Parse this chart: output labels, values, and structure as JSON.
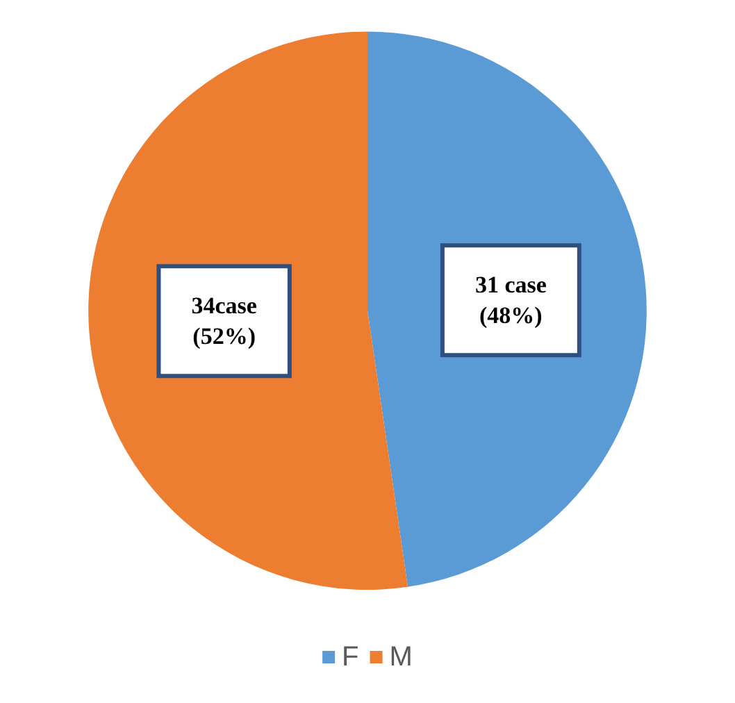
{
  "chart_data": {
    "type": "pie",
    "categories": [
      "F",
      "M"
    ],
    "values": [
      31,
      34
    ],
    "colors": [
      "#5b9bd5",
      "#ed7d31"
    ],
    "value_labels": [
      "31 case\n(48%)",
      "34case\n(52%)"
    ],
    "legend": "bottom"
  }
}
